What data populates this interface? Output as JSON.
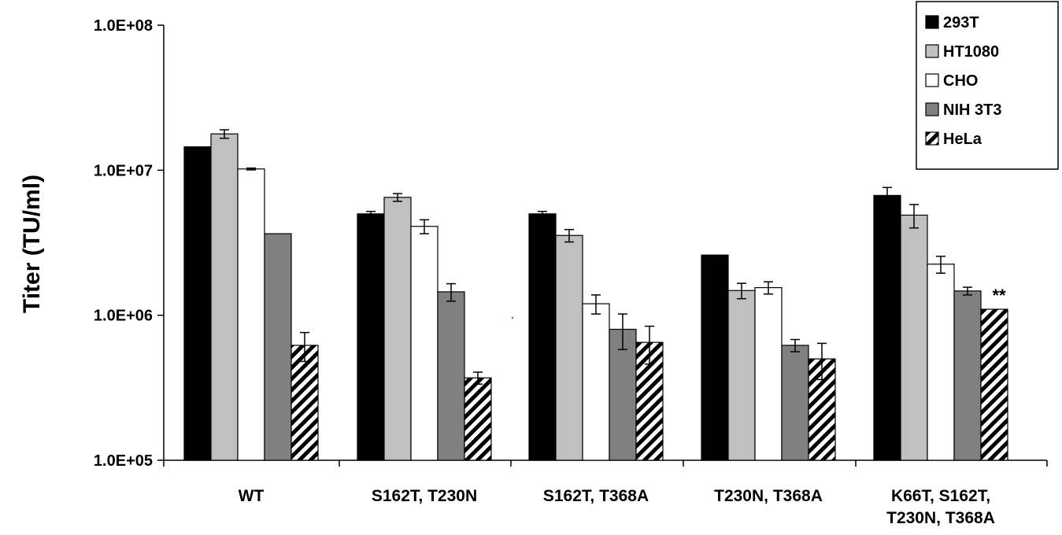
{
  "chart_data": {
    "type": "bar",
    "ylabel": "Titer (TU/ml)",
    "xlabel": "",
    "yscale": "log",
    "ylim": [
      100000,
      100000000
    ],
    "yticks": [
      {
        "value": 100000,
        "label": "1.0E+05"
      },
      {
        "value": 1000000,
        "label": "1.0E+06"
      },
      {
        "value": 10000000,
        "label": "1.0E+07"
      },
      {
        "value": 100000000,
        "label": "1.0E+08"
      }
    ],
    "categories": [
      [
        "WT"
      ],
      [
        "S162T, T230N"
      ],
      [
        "S162T, T368A"
      ],
      [
        "T230N, T368A"
      ],
      [
        "K66T, S162T,",
        "T230N, T368A"
      ]
    ],
    "legend_position": "top-right",
    "series": [
      {
        "name": "293T",
        "color": "#000000",
        "pattern": "solid",
        "values": [
          14500000,
          5000000,
          5000000,
          2600000,
          6700000
        ],
        "errors": [
          0,
          200000,
          200000,
          0,
          900000
        ]
      },
      {
        "name": "HT1080",
        "color": "#c0c0c0",
        "pattern": "solid",
        "values": [
          17800000,
          6500000,
          3550000,
          1480000,
          4900000
        ],
        "errors": [
          1200000,
          400000,
          350000,
          180000,
          900000
        ]
      },
      {
        "name": "CHO",
        "color": "#ffffff",
        "pattern": "solid",
        "values": [
          10200000,
          4100000,
          1200000,
          1550000,
          2250000
        ],
        "errors": [
          150000,
          450000,
          180000,
          150000,
          300000
        ]
      },
      {
        "name": "NIH 3T3",
        "color": "#808080",
        "pattern": "solid",
        "values": [
          3650000,
          1450000,
          800000,
          620000,
          1470000
        ],
        "errors": [
          0,
          200000,
          220000,
          60000,
          90000
        ]
      },
      {
        "name": "HeLa",
        "color": "#ffffff",
        "pattern": "hatch",
        "values": [
          620000,
          370000,
          650000,
          500000,
          1100000
        ],
        "errors": [
          140000,
          35000,
          190000,
          140000,
          0
        ]
      }
    ],
    "annotations": [
      {
        "text": "**",
        "category_index": 4,
        "series_index": 4
      }
    ]
  }
}
